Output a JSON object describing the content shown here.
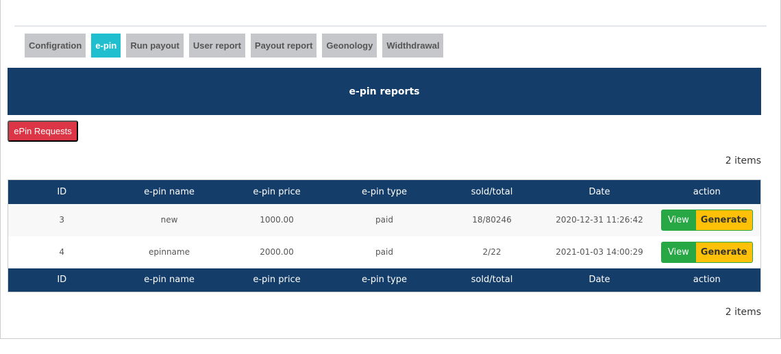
{
  "tabs": [
    "Configration",
    "e-pin",
    "Run payout",
    "User report",
    "Payout report",
    "Geonology",
    "Widthdrawal"
  ],
  "active_tab": "e-pin",
  "banner_title": "e-pin reports",
  "epin_requests_label": "ePin Requests",
  "item_count": "2 items",
  "table": {
    "columns": [
      "ID",
      "e-pin name",
      "e-pin price",
      "e-pin type",
      "sold/total",
      "Date",
      "action"
    ],
    "rows": [
      {
        "id": "3",
        "name": "new",
        "price": "1000.00",
        "type": "paid",
        "sold_total": "18/80246",
        "date": "2020-12-31 11:26:42"
      },
      {
        "id": "4",
        "name": "epinname",
        "price": "2000.00",
        "type": "paid",
        "sold_total": "2/22",
        "date": "2021-01-03 14:00:29"
      }
    ],
    "view_label": "View",
    "generate_label": "Generate"
  },
  "colors": {
    "header": "#143d69",
    "active_tab": "#1fbfcf",
    "danger": "#dc3545",
    "success": "#28a745",
    "warning": "#ffc107"
  }
}
